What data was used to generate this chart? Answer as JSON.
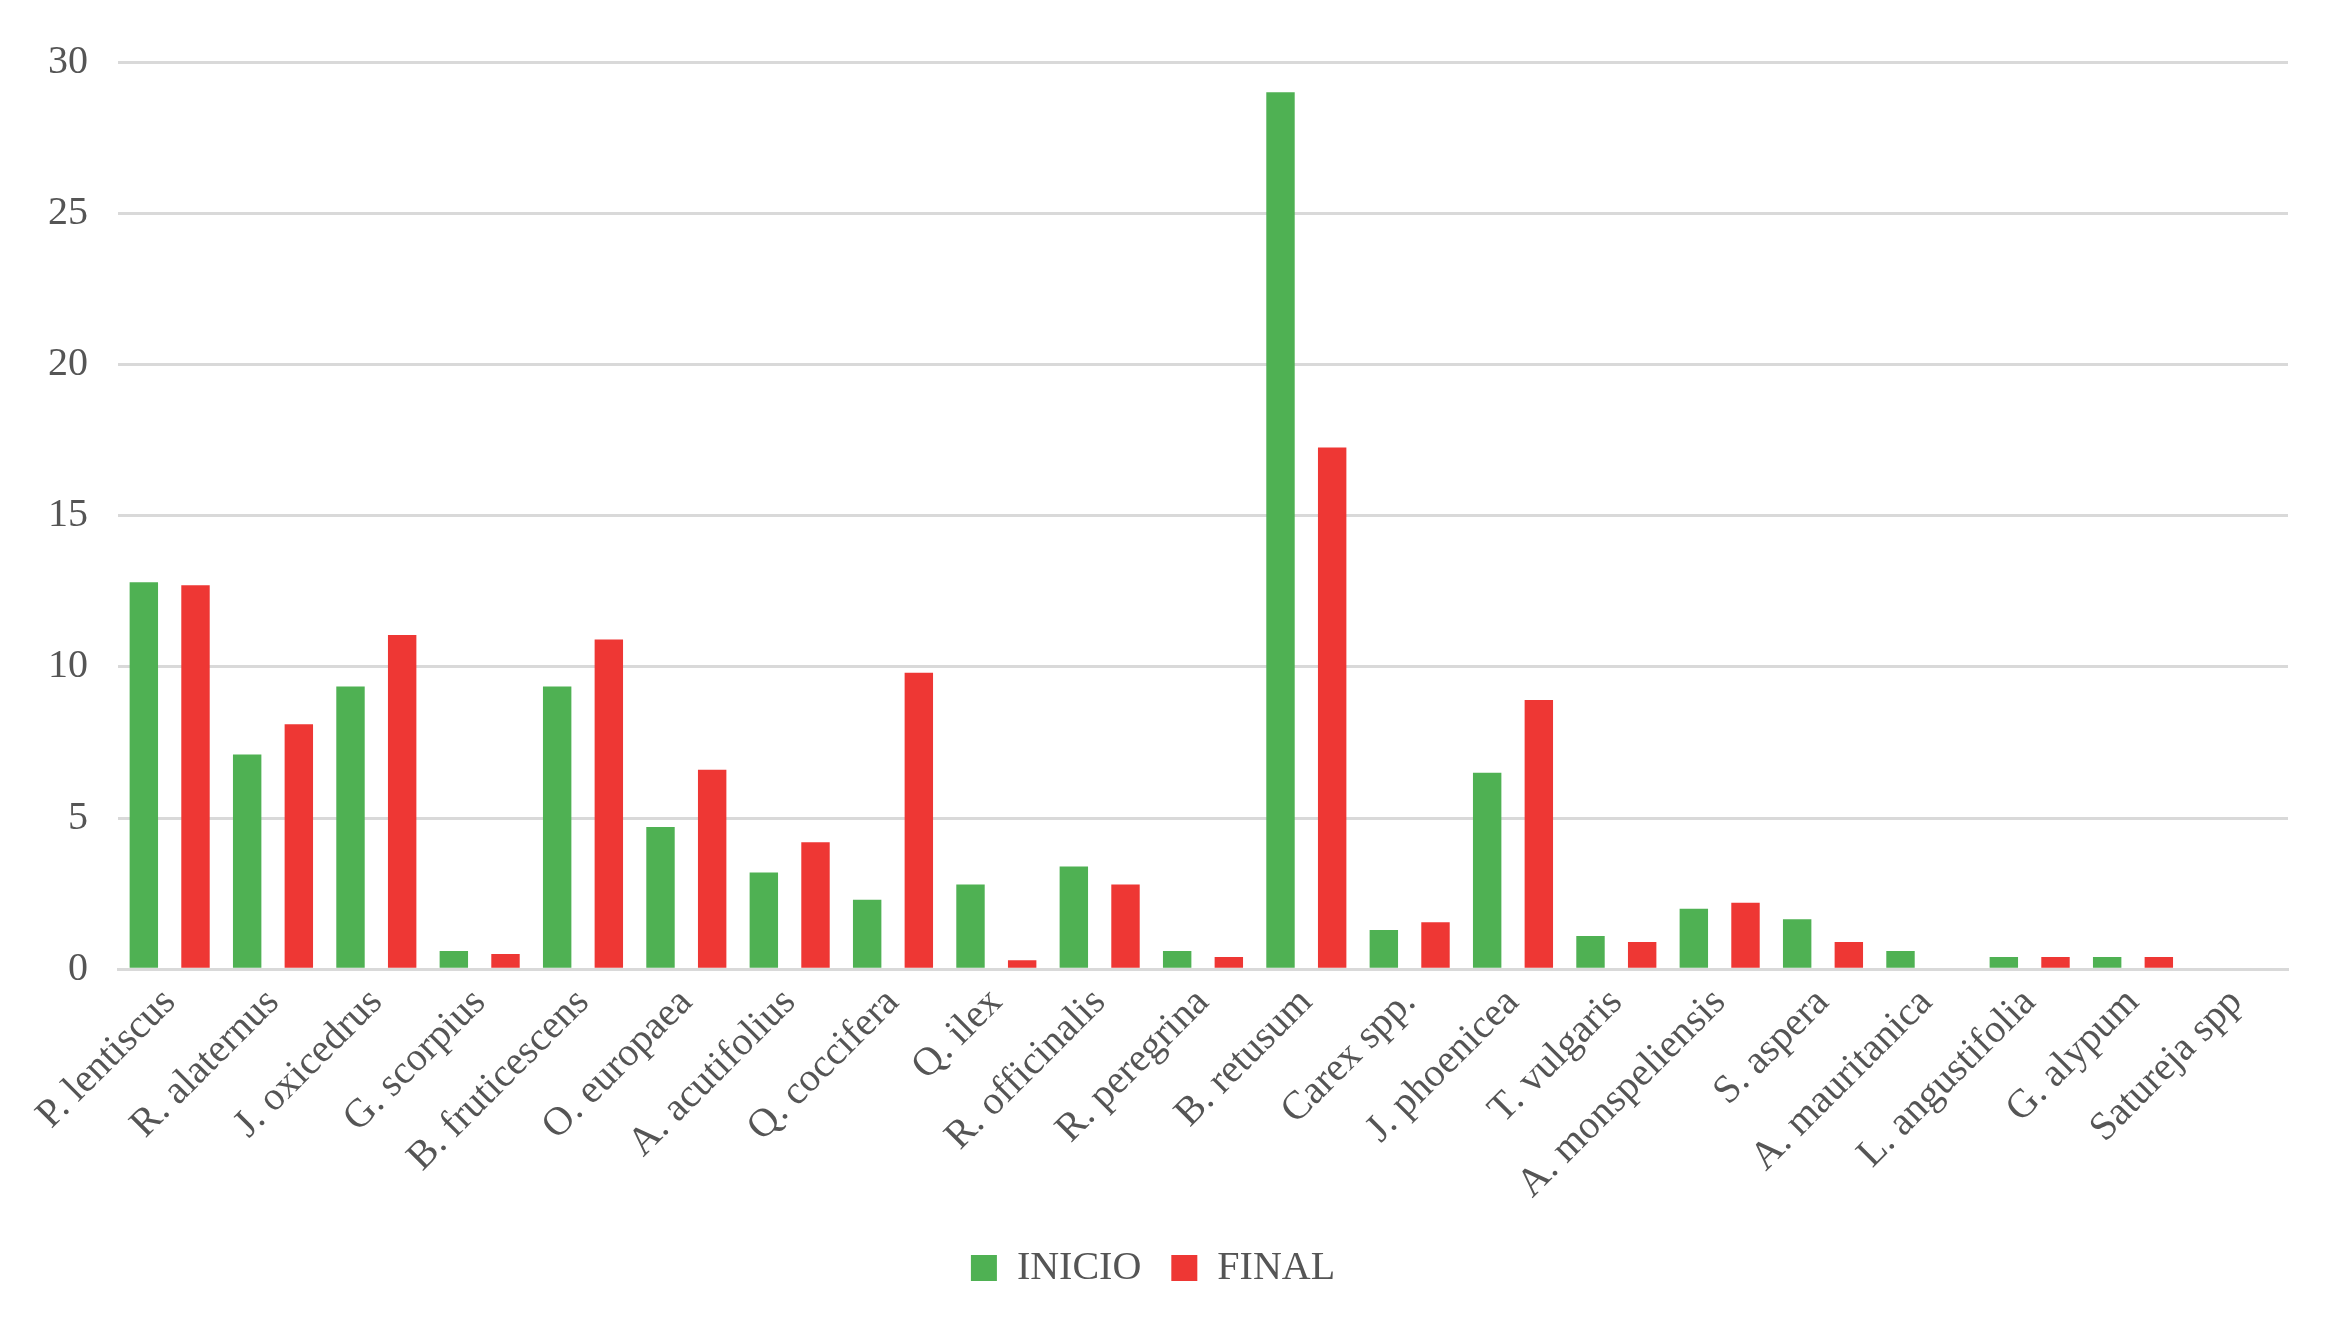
{
  "chart_data": {
    "type": "bar",
    "categories": [
      "P. lentiscus",
      "R. alaternus",
      "J. oxicedrus",
      "G. scorpius",
      "B. fruticescens",
      "O. europaea",
      "A. acutifolius",
      "Q. coccifera",
      "Q. ilex",
      "R. officinalis",
      "R. peregrina",
      "B. retusum",
      "Carex spp.",
      "J. phoenicea",
      "T. vulgaris",
      "A. monspeliensis",
      "S. aspera",
      "A. mauritanica",
      "L. angustifolia",
      "G. alypum",
      "Satureja spp"
    ],
    "series": [
      {
        "name": "INICIO",
        "color": "#4fb153",
        "values": [
          12.8,
          7.1,
          9.35,
          0.6,
          9.35,
          4.7,
          3.2,
          2.3,
          2.8,
          3.4,
          0.6,
          29.0,
          1.3,
          6.5,
          1.1,
          2.0,
          1.65,
          0.6,
          0.4,
          0.4,
          null
        ]
      },
      {
        "name": "FINAL",
        "color": "#ee3734",
        "values": [
          12.7,
          8.1,
          11.05,
          0.5,
          10.9,
          6.6,
          4.2,
          9.8,
          0.3,
          2.8,
          0.4,
          17.25,
          1.55,
          8.9,
          0.9,
          2.2,
          0.9,
          null,
          0.4,
          0.4,
          null
        ]
      }
    ],
    "ylim": [
      0,
      30
    ],
    "yticks": [
      0,
      5,
      10,
      15,
      20,
      25,
      30
    ],
    "grid": "y",
    "legend": "bottom"
  }
}
